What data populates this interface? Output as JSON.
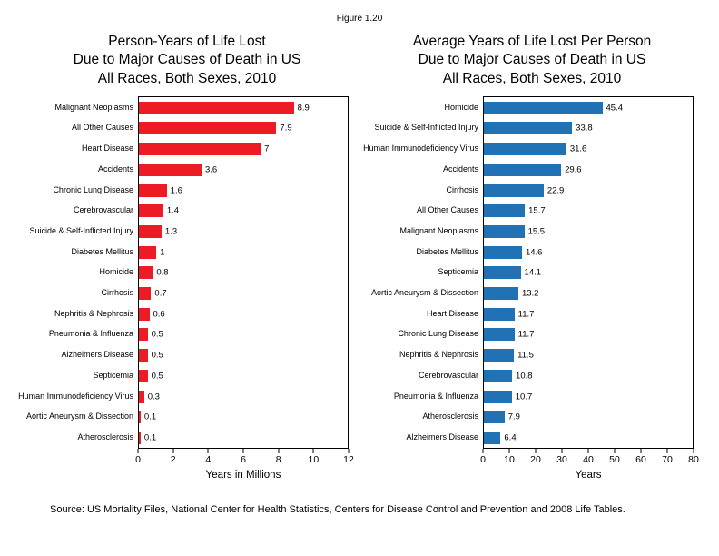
{
  "figure_label": "Figure 1.20",
  "source": "Source: US Mortality Files, National Center for Health Statistics, Centers for Disease Control and Prevention and 2008 Life Tables.",
  "chart_data": [
    {
      "type": "bar",
      "orientation": "horizontal",
      "title": "Person-Years of Life Lost\nDue to Major Causes of Death in US\nAll Races, Both Sexes, 2010",
      "xlabel": "Years in Millions",
      "xlim": [
        0,
        12
      ],
      "xticks": [
        0,
        2,
        4,
        6,
        8,
        10,
        12
      ],
      "bar_color": "#ed1c24",
      "grid": false,
      "legend": false,
      "categories": [
        "Malignant Neoplasms",
        "All Other Causes",
        "Heart Disease",
        "Accidents",
        "Chronic Lung Disease",
        "Cerebrovascular",
        "Suicide & Self-Inflicted Injury",
        "Diabetes Mellitus",
        "Homicide",
        "Cirrhosis",
        "Nephritis & Nephrosis",
        "Pneumonia & Influenza",
        "Alzheimers Disease",
        "Septicemia",
        "Human Immunodeficiency Virus",
        "Aortic Aneurysm & Dissection",
        "Atherosclerosis"
      ],
      "values": [
        8.9,
        7.9,
        7,
        3.6,
        1.6,
        1.4,
        1.3,
        1,
        0.8,
        0.7,
        0.6,
        0.5,
        0.5,
        0.5,
        0.3,
        0.1,
        0.1
      ]
    },
    {
      "type": "bar",
      "orientation": "horizontal",
      "title": "Average Years of Life Lost Per Person\nDue to Major Causes of Death in US\nAll Races, Both Sexes, 2010",
      "xlabel": "Years",
      "xlim": [
        0,
        80
      ],
      "xticks": [
        0,
        10,
        20,
        30,
        40,
        50,
        60,
        70,
        80
      ],
      "bar_color": "#2171b5",
      "grid": false,
      "legend": false,
      "categories": [
        "Homicide",
        "Suicide & Self-Inflicted Injury",
        "Human Immunodeficiency Virus",
        "Accidents",
        "Cirrhosis",
        "All Other Causes",
        "Malignant Neoplasms",
        "Diabetes Mellitus",
        "Septicemia",
        "Aortic Aneurysm & Dissection",
        "Heart Disease",
        "Chronic Lung Disease",
        "Nephritis & Nephrosis",
        "Cerebrovascular",
        "Pneumonia & Influenza",
        "Atherosclerosis",
        "Alzheimers Disease"
      ],
      "values": [
        45.4,
        33.8,
        31.6,
        29.6,
        22.9,
        15.7,
        15.5,
        14.6,
        14.1,
        13.2,
        11.7,
        11.7,
        11.5,
        10.8,
        10.7,
        7.9,
        6.4
      ]
    }
  ]
}
